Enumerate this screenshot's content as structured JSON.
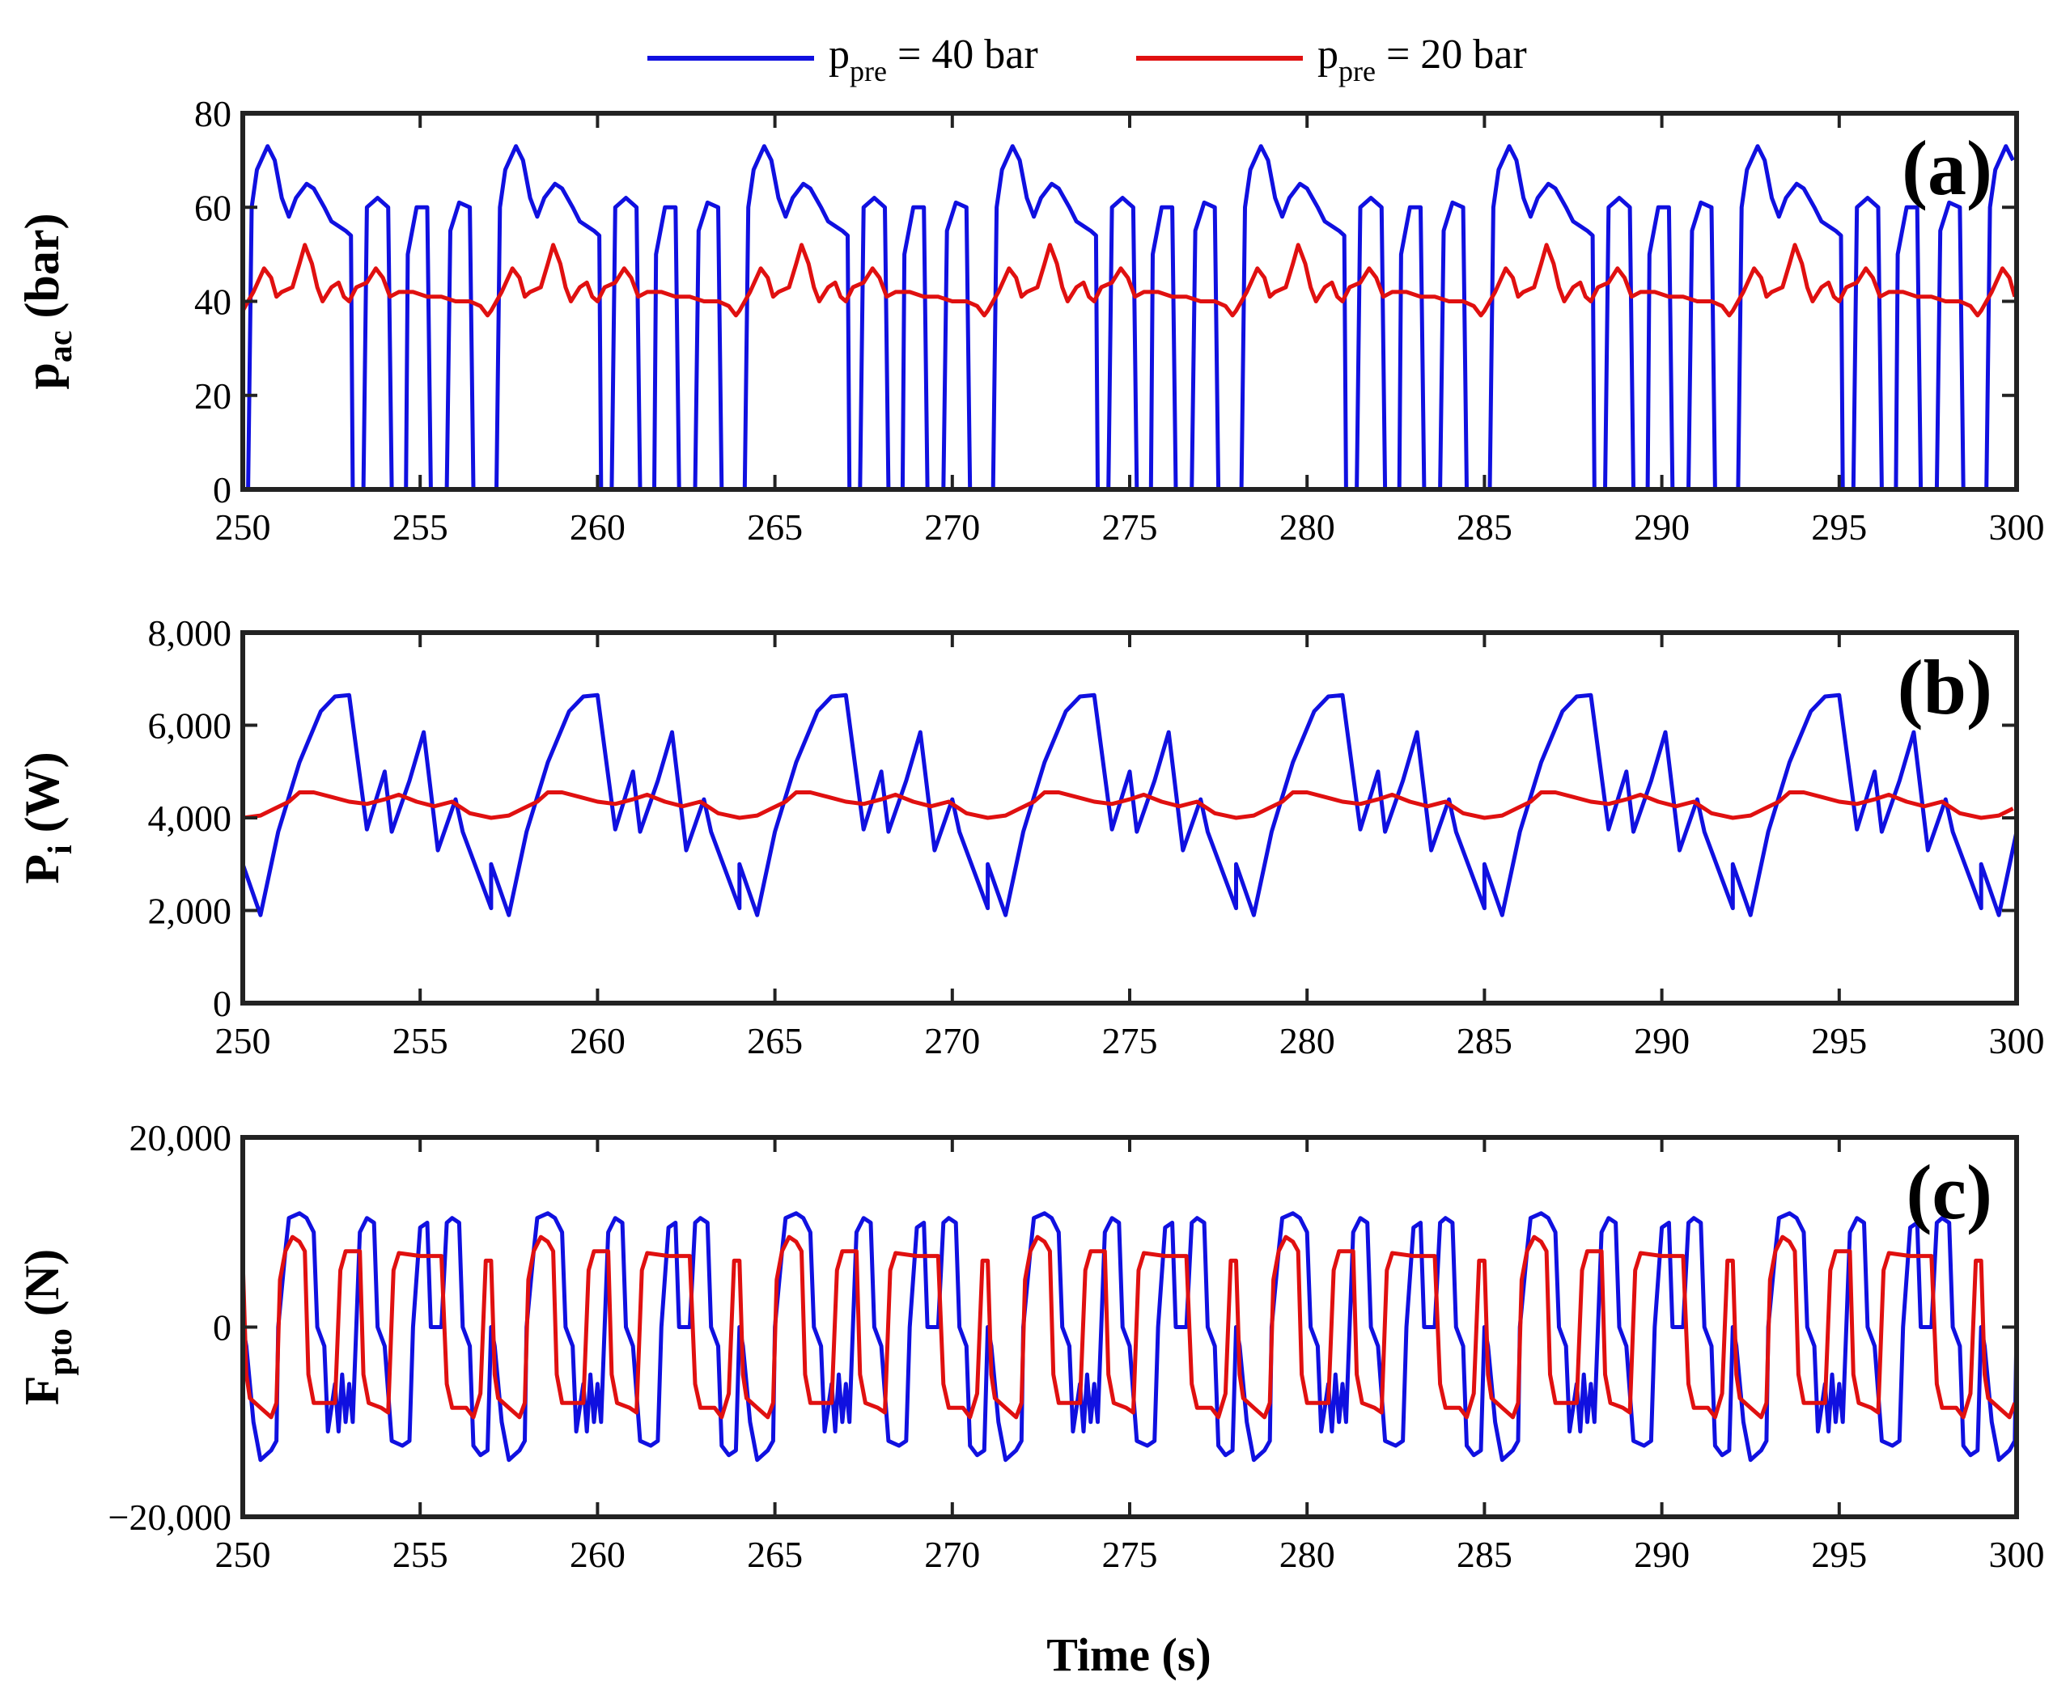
{
  "legend": {
    "entries": [
      {
        "base": "p",
        "sub": "pre",
        "rest": " = 40 bar",
        "color": "#1010e0"
      },
      {
        "base": "p",
        "sub": "pre",
        "rest": " = 20 bar",
        "color": "#e01010"
      }
    ]
  },
  "x_axis_label": "Time (s)",
  "colors": {
    "blue": "#1010e0",
    "red": "#e01010",
    "axis": "#222222"
  },
  "chart_data": [
    {
      "id": "a",
      "type": "line",
      "panel_tag": "(a)",
      "ylabel_base": "p",
      "ylabel_sub": "ac",
      "ylabel_rest": " (bar)",
      "xlim": [
        250,
        300
      ],
      "ylim": [
        0,
        80
      ],
      "xticks": [
        250,
        255,
        260,
        265,
        270,
        275,
        280,
        285,
        290,
        295,
        300
      ],
      "xtick_labels": [
        "250",
        "255",
        "260",
        "265",
        "270",
        "275",
        "280",
        "285",
        "290",
        "295",
        "300"
      ],
      "yticks": [
        0,
        20,
        40,
        60,
        80
      ],
      "ytick_labels": [
        "0",
        "20",
        "40",
        "60",
        "80"
      ],
      "period": 7.0,
      "series": [
        {
          "name": "p_pre = 40 bar",
          "color": "#1010e0",
          "pattern": [
            [
              0.0,
              0
            ],
            [
              0.15,
              0
            ],
            [
              0.25,
              60
            ],
            [
              0.4,
              68
            ],
            [
              0.7,
              73
            ],
            [
              0.9,
              70
            ],
            [
              1.1,
              62
            ],
            [
              1.3,
              58
            ],
            [
              1.5,
              62
            ],
            [
              1.8,
              65
            ],
            [
              2.0,
              64
            ],
            [
              2.3,
              60
            ],
            [
              2.5,
              57
            ],
            [
              2.7,
              56
            ],
            [
              2.9,
              55
            ],
            [
              3.05,
              54
            ],
            [
              3.1,
              0
            ],
            [
              3.4,
              0
            ],
            [
              3.5,
              60
            ],
            [
              3.8,
              62
            ],
            [
              4.1,
              60
            ],
            [
              4.2,
              0
            ],
            [
              4.6,
              0
            ],
            [
              4.65,
              50
            ],
            [
              4.9,
              60
            ],
            [
              5.2,
              60
            ],
            [
              5.3,
              0
            ],
            [
              5.75,
              0
            ],
            [
              5.85,
              55
            ],
            [
              6.1,
              61
            ],
            [
              6.4,
              60
            ],
            [
              6.5,
              0
            ],
            [
              7.0,
              0
            ]
          ]
        },
        {
          "name": "p_pre = 20 bar",
          "color": "#e01010",
          "pattern": [
            [
              0.0,
              38
            ],
            [
              0.3,
              42
            ],
            [
              0.6,
              47
            ],
            [
              0.8,
              45
            ],
            [
              0.95,
              41
            ],
            [
              1.1,
              42
            ],
            [
              1.4,
              43
            ],
            [
              1.6,
              48
            ],
            [
              1.75,
              52
            ],
            [
              1.95,
              48
            ],
            [
              2.1,
              43
            ],
            [
              2.25,
              40
            ],
            [
              2.5,
              43
            ],
            [
              2.7,
              44
            ],
            [
              2.85,
              41
            ],
            [
              3.0,
              40
            ],
            [
              3.2,
              43
            ],
            [
              3.5,
              44
            ],
            [
              3.75,
              47
            ],
            [
              3.95,
              45
            ],
            [
              4.15,
              41
            ],
            [
              4.4,
              42
            ],
            [
              4.8,
              42
            ],
            [
              5.2,
              41
            ],
            [
              5.6,
              41
            ],
            [
              6.0,
              40
            ],
            [
              6.4,
              40
            ],
            [
              6.7,
              39
            ],
            [
              6.9,
              37
            ],
            [
              7.0,
              38
            ]
          ]
        }
      ]
    },
    {
      "id": "b",
      "type": "line",
      "panel_tag": "(b)",
      "ylabel_base": "P",
      "ylabel_sub": "i",
      "ylabel_rest": " (W)",
      "xlim": [
        250,
        300
      ],
      "ylim": [
        0,
        8000
      ],
      "xticks": [
        250,
        255,
        260,
        265,
        270,
        275,
        280,
        285,
        290,
        295,
        300
      ],
      "xtick_labels": [
        "250",
        "255",
        "260",
        "265",
        "270",
        "275",
        "280",
        "285",
        "290",
        "295",
        "300"
      ],
      "yticks": [
        0,
        2000,
        4000,
        6000,
        8000
      ],
      "ytick_labels": [
        "0",
        "2,000",
        "4,000",
        "6,000",
        "8,000"
      ],
      "period": 7.0,
      "series": [
        {
          "name": "p_pre = 40 bar",
          "color": "#1010e0",
          "pattern": [
            [
              0.0,
              3000
            ],
            [
              0.5,
              1900
            ],
            [
              1.0,
              3700
            ],
            [
              1.6,
              5200
            ],
            [
              2.2,
              6300
            ],
            [
              2.6,
              6620
            ],
            [
              3.0,
              6650
            ],
            [
              3.5,
              3750
            ],
            [
              4.0,
              5000
            ],
            [
              4.2,
              3700
            ],
            [
              4.7,
              4800
            ],
            [
              5.1,
              5850
            ],
            [
              5.5,
              3300
            ],
            [
              6.0,
              4400
            ],
            [
              6.2,
              3700
            ],
            [
              7.0,
              2050
            ]
          ]
        },
        {
          "name": "p_pre = 20 bar",
          "color": "#e01010",
          "pattern": [
            [
              0.0,
              4000
            ],
            [
              0.5,
              4050
            ],
            [
              0.9,
              4200
            ],
            [
              1.3,
              4350
            ],
            [
              1.6,
              4550
            ],
            [
              2.0,
              4550
            ],
            [
              2.5,
              4450
            ],
            [
              3.0,
              4350
            ],
            [
              3.5,
              4300
            ],
            [
              4.0,
              4400
            ],
            [
              4.4,
              4500
            ],
            [
              4.9,
              4350
            ],
            [
              5.4,
              4250
            ],
            [
              5.9,
              4350
            ],
            [
              6.4,
              4100
            ],
            [
              7.0,
              4000
            ]
          ]
        }
      ]
    },
    {
      "id": "c",
      "type": "line",
      "panel_tag": "(c)",
      "ylabel_base": "F",
      "ylabel_sub": "pto",
      "ylabel_rest": " (N)",
      "xlim": [
        250,
        300
      ],
      "ylim": [
        -20000,
        20000
      ],
      "xticks": [
        250,
        255,
        260,
        265,
        270,
        275,
        280,
        285,
        290,
        295,
        300
      ],
      "xtick_labels": [
        "250",
        "255",
        "260",
        "265",
        "270",
        "275",
        "280",
        "285",
        "290",
        "295",
        "300"
      ],
      "yticks": [
        -20000,
        0,
        20000
      ],
      "ytick_labels": [
        "−20,000",
        "0",
        "20,000"
      ],
      "period": 7.0,
      "series": [
        {
          "name": "p_pre = 40 bar",
          "color": "#1010e0",
          "pattern": [
            [
              0.0,
              0
            ],
            [
              0.1,
              -2000
            ],
            [
              0.3,
              -10000
            ],
            [
              0.5,
              -14000
            ],
            [
              0.8,
              -13000
            ],
            [
              0.95,
              -12000
            ],
            [
              1.0,
              0
            ],
            [
              1.2,
              8000
            ],
            [
              1.3,
              11500
            ],
            [
              1.6,
              12000
            ],
            [
              1.8,
              11500
            ],
            [
              2.0,
              10000
            ],
            [
              2.1,
              0
            ],
            [
              2.3,
              -2000
            ],
            [
              2.4,
              -11000
            ],
            [
              2.6,
              -6000
            ],
            [
              2.7,
              -11000
            ],
            [
              2.8,
              -5000
            ],
            [
              2.9,
              -10000
            ],
            [
              3.0,
              -6000
            ],
            [
              3.1,
              -10000
            ],
            [
              3.2,
              0
            ],
            [
              3.3,
              10000
            ],
            [
              3.5,
              11500
            ],
            [
              3.7,
              11000
            ],
            [
              3.8,
              0
            ],
            [
              4.0,
              -2000
            ],
            [
              4.2,
              -12000
            ],
            [
              4.5,
              -12500
            ],
            [
              4.7,
              -12000
            ],
            [
              4.8,
              0
            ],
            [
              5.0,
              10500
            ],
            [
              5.2,
              11000
            ],
            [
              5.3,
              0
            ],
            [
              5.6,
              0
            ],
            [
              5.75,
              11000
            ],
            [
              5.9,
              11500
            ],
            [
              6.1,
              11000
            ],
            [
              6.2,
              0
            ],
            [
              6.4,
              -2000
            ],
            [
              6.5,
              -12500
            ],
            [
              6.7,
              -13500
            ],
            [
              6.9,
              -13000
            ],
            [
              7.0,
              0
            ]
          ]
        },
        {
          "name": "p_pre = 20 bar",
          "color": "#e01010",
          "pattern": [
            [
              0.0,
              7000
            ],
            [
              0.1,
              -5000
            ],
            [
              0.2,
              -7500
            ],
            [
              0.5,
              -8500
            ],
            [
              0.8,
              -9500
            ],
            [
              0.95,
              -8000
            ],
            [
              1.05,
              5000
            ],
            [
              1.2,
              8000
            ],
            [
              1.4,
              9500
            ],
            [
              1.6,
              9000
            ],
            [
              1.75,
              8000
            ],
            [
              1.85,
              -5000
            ],
            [
              2.0,
              -8000
            ],
            [
              2.4,
              -8000
            ],
            [
              2.6,
              -8000
            ],
            [
              2.75,
              6000
            ],
            [
              2.9,
              8000
            ],
            [
              3.3,
              8000
            ],
            [
              3.4,
              -5000
            ],
            [
              3.55,
              -8000
            ],
            [
              3.9,
              -8500
            ],
            [
              4.1,
              -9000
            ],
            [
              4.25,
              6000
            ],
            [
              4.4,
              7800
            ],
            [
              5.0,
              7500
            ],
            [
              5.6,
              7500
            ],
            [
              5.75,
              -6000
            ],
            [
              5.9,
              -8500
            ],
            [
              6.3,
              -8500
            ],
            [
              6.5,
              -9500
            ],
            [
              6.7,
              -7000
            ],
            [
              6.85,
              7000
            ],
            [
              7.0,
              7000
            ]
          ]
        }
      ]
    }
  ]
}
